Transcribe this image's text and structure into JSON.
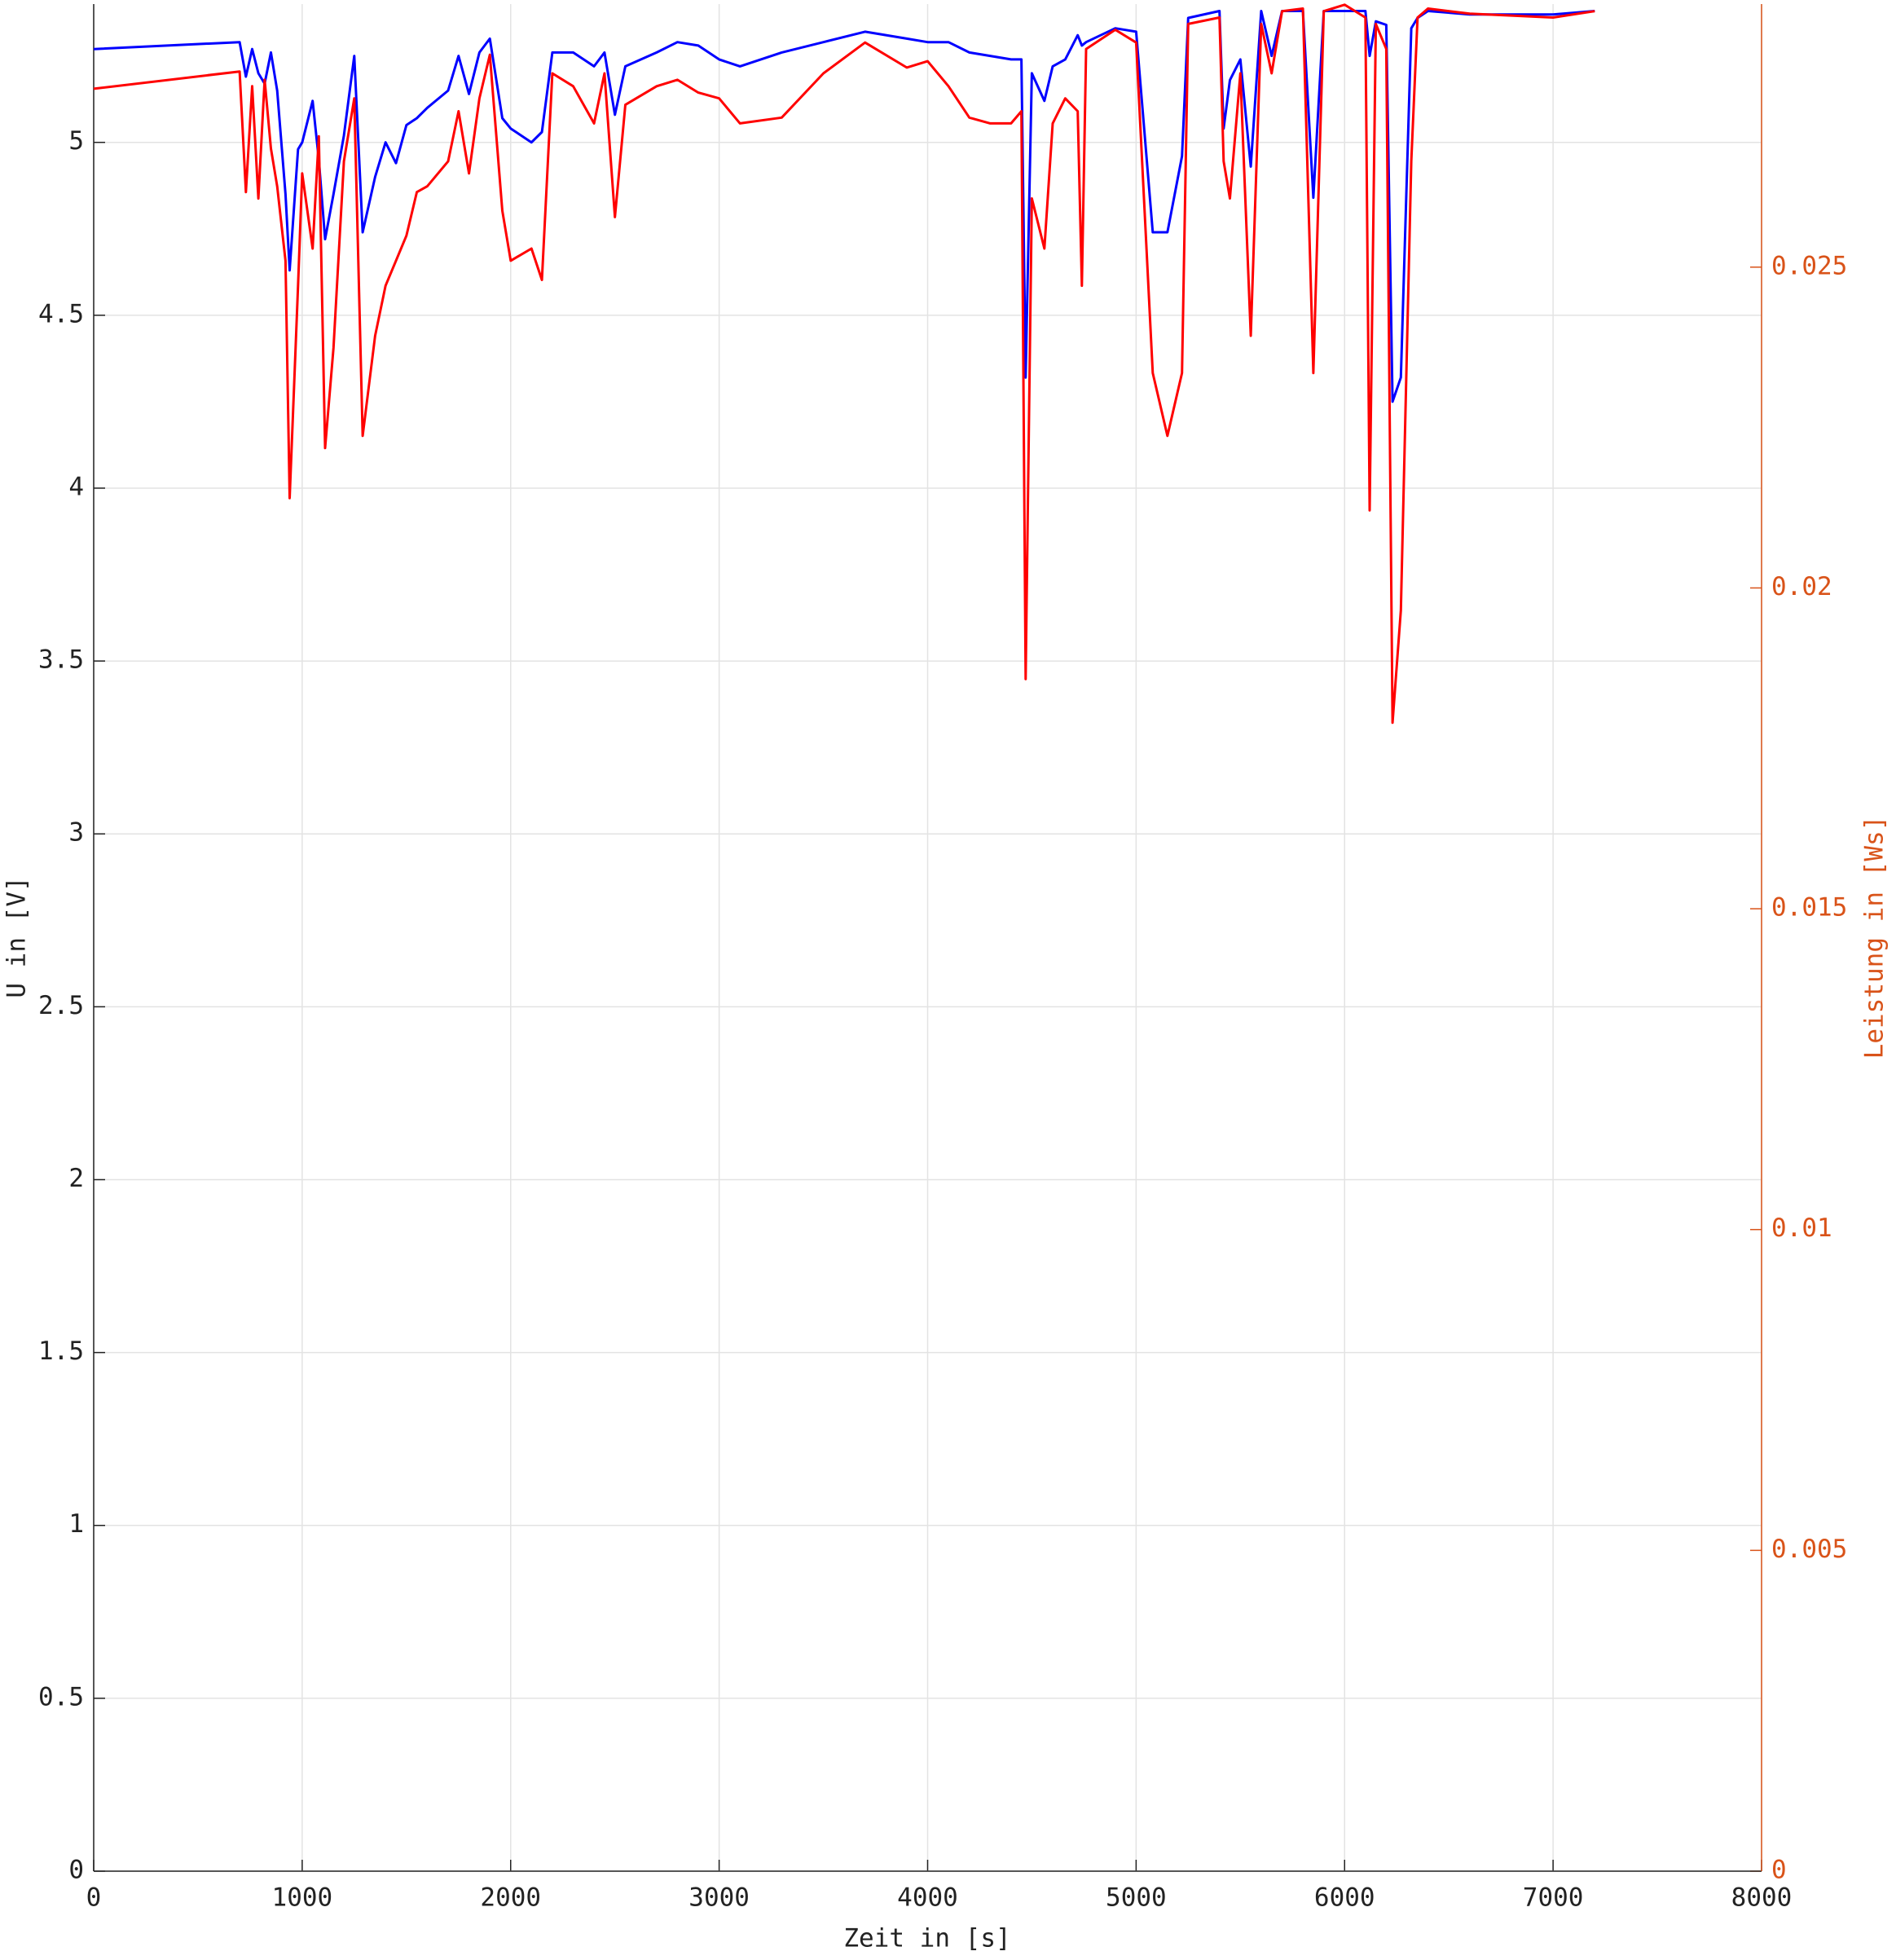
{
  "chart_data": {
    "type": "line",
    "xlabel": "Zeit in [s]",
    "ylabel": "U in [V]",
    "y2label": "Leistung in [Ws]",
    "x": [
      0,
      700,
      730,
      760,
      790,
      820,
      850,
      880,
      920,
      940,
      980,
      1000,
      1050,
      1080,
      1110,
      1150,
      1200,
      1250,
      1290,
      1350,
      1400,
      1450,
      1500,
      1550,
      1600,
      1700,
      1750,
      1800,
      1850,
      1900,
      1960,
      2000,
      2100,
      2150,
      2200,
      2300,
      2400,
      2450,
      2500,
      2550,
      2700,
      2800,
      2900,
      3000,
      3100,
      3300,
      3500,
      3700,
      3900,
      4000,
      4100,
      4200,
      4300,
      4400,
      4450,
      4470,
      4500,
      4560,
      4600,
      4660,
      4720,
      4740,
      4760,
      4900,
      5000,
      5080,
      5150,
      5220,
      5250,
      5400,
      5420,
      5450,
      5500,
      5550,
      5600,
      5650,
      5700,
      5800,
      5850,
      5900,
      6000,
      6100,
      6120,
      6150,
      6200,
      6230,
      6270,
      6320,
      6350,
      6400,
      6600,
      7000,
      7200
    ],
    "series": [
      {
        "color": "#0000ff",
        "values": [
          5.27,
          5.29,
          5.19,
          5.27,
          5.2,
          5.17,
          5.26,
          5.15,
          4.85,
          4.63,
          4.98,
          5.0,
          5.12,
          4.95,
          4.72,
          4.85,
          5.02,
          5.25,
          4.74,
          4.9,
          5.0,
          4.94,
          5.05,
          5.07,
          5.1,
          5.15,
          5.25,
          5.14,
          5.26,
          5.3,
          5.07,
          5.04,
          5.0,
          5.03,
          5.26,
          5.26,
          5.22,
          5.26,
          5.08,
          5.22,
          5.26,
          5.29,
          5.28,
          5.24,
          5.22,
          5.26,
          5.29,
          5.32,
          5.3,
          5.29,
          5.29,
          5.26,
          5.25,
          5.24,
          5.24,
          4.32,
          5.2,
          5.12,
          5.22,
          5.24,
          5.31,
          5.28,
          5.29,
          5.33,
          5.32,
          4.74,
          4.74,
          4.96,
          5.36,
          5.38,
          5.04,
          5.18,
          5.24,
          4.93,
          5.38,
          5.25,
          5.38,
          5.38,
          4.84,
          5.38,
          5.38,
          5.38,
          5.25,
          5.35,
          5.34,
          4.25,
          4.32,
          5.33,
          5.36,
          5.38,
          5.37,
          5.37,
          5.38
        ]
      },
      {
        "color": "#ff0000",
        "axis": "y2",
        "values": [
          0.02778,
          0.02805,
          0.02617,
          0.02782,
          0.02607,
          0.02792,
          0.02685,
          0.02626,
          0.0251,
          0.0214,
          0.02471,
          0.02646,
          0.02529,
          0.02704,
          0.02218,
          0.02374,
          0.02665,
          0.02763,
          0.02237,
          0.02393,
          0.02471,
          0.0251,
          0.02549,
          0.02617,
          0.02626,
          0.02665,
          0.02743,
          0.02646,
          0.02763,
          0.02831,
          0.02588,
          0.0251,
          0.02529,
          0.0248,
          0.02802,
          0.02782,
          0.02724,
          0.02802,
          0.02578,
          0.02753,
          0.02782,
          0.02792,
          0.02772,
          0.02763,
          0.02724,
          0.02733,
          0.02802,
          0.0285,
          0.02811,
          0.02821,
          0.02782,
          0.02733,
          0.02724,
          0.02724,
          0.02743,
          0.01858,
          0.02607,
          0.02529,
          0.02724,
          0.02763,
          0.02743,
          0.02471,
          0.0284,
          0.0287,
          0.0285,
          0.02335,
          0.02237,
          0.02335,
          0.02879,
          0.02889,
          0.02665,
          0.02607,
          0.02802,
          0.02393,
          0.02879,
          0.02802,
          0.02899,
          0.02903,
          0.02335,
          0.02899,
          0.02909,
          0.02889,
          0.02121,
          0.02879,
          0.0284,
          0.0179,
          0.01965,
          0.02665,
          0.02889,
          0.02903,
          0.02895,
          0.02889,
          0.02899
        ]
      }
    ],
    "xlim": [
      0,
      8000
    ],
    "xticks": [
      0,
      1000,
      2000,
      3000,
      4000,
      5000,
      6000,
      7000,
      8000
    ],
    "ylim": [
      0,
      5.4
    ],
    "yticks": [
      0,
      0.5,
      1,
      1.5,
      2,
      2.5,
      3,
      3.5,
      4,
      4.5,
      5
    ],
    "y2lim": [
      0,
      0.0291
    ],
    "y2ticks": [
      0,
      0.005,
      0.01,
      0.015,
      0.02,
      0.025
    ],
    "y2color": "#d95319",
    "grid": true
  }
}
